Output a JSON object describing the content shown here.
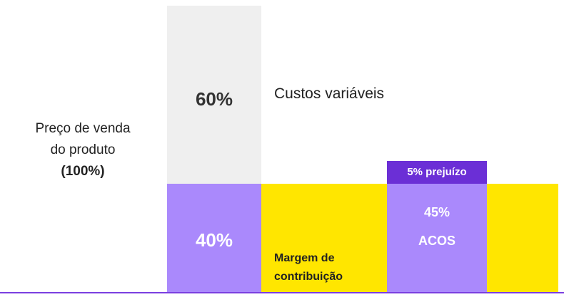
{
  "left_label": {
    "line1": "Preço de venda",
    "line2": "do produto",
    "line3": "(100%)"
  },
  "variable_costs": {
    "percent": "60%",
    "label": "Custos variáveis"
  },
  "contribution": {
    "percent": "40%",
    "label_line1": "Margem de",
    "label_line2": "contribuição"
  },
  "acos": {
    "percent": "45%",
    "label": "ACOS",
    "loss_label": "5% prejuízo"
  },
  "colors": {
    "gray": "#efefef",
    "purple_light": "#aa89fc",
    "purple_dark": "#6b2fd6",
    "yellow": "#ffe600",
    "text_dark": "#333333",
    "white": "#ffffff",
    "baseline": "#7b3fe0"
  }
}
